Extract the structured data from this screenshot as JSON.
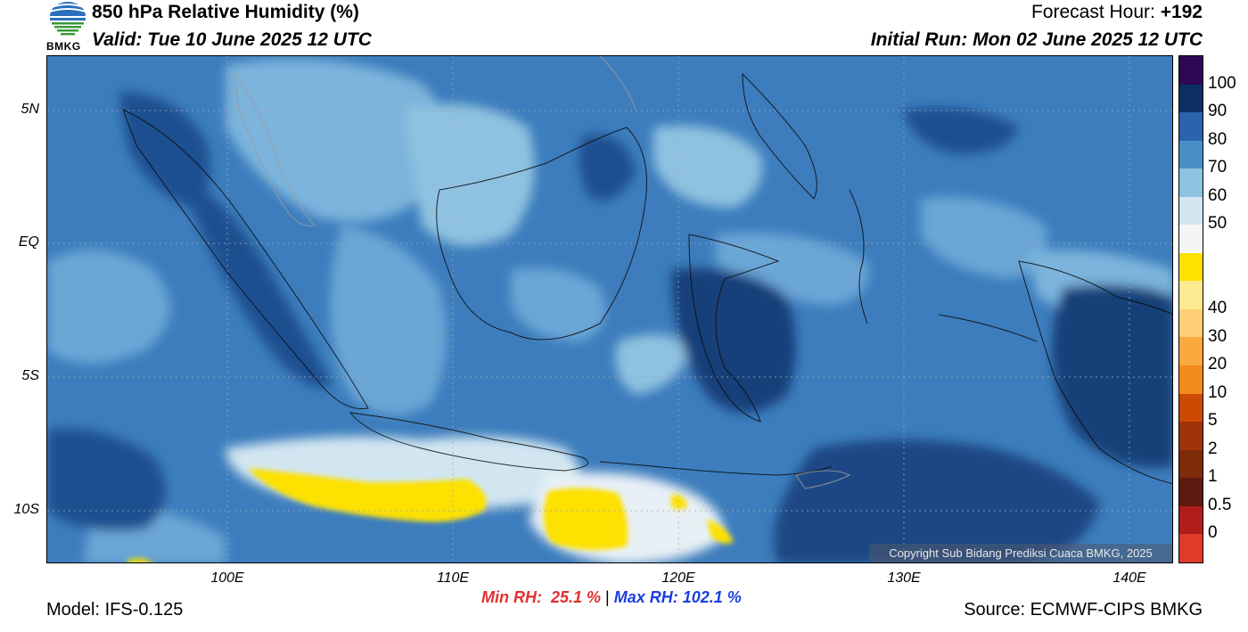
{
  "header": {
    "title": "850 hPa Relative Humidity (%)",
    "valid": "Valid: Tue 10 June 2025 12 UTC",
    "forecast_label": "Forecast Hour: ",
    "forecast_value": "+192",
    "initial_run": "Initial Run: Mon 02 June 2025 12 UTC"
  },
  "logo": {
    "text": "BMKG",
    "icon": "bmkg-logo"
  },
  "map": {
    "lat_labels": [
      "5N",
      "EQ",
      "5S",
      "10S"
    ],
    "lon_labels": [
      "100E",
      "110E",
      "120E",
      "130E",
      "140E"
    ],
    "copyright": "Copyright Sub Bidang Prediksi Cuaca BMKG, 2025"
  },
  "colorbar": {
    "labels": [
      "100",
      "90",
      "80",
      "70",
      "60",
      "50",
      "40",
      "30",
      "20",
      "10",
      "5",
      "2",
      "1",
      "0.5",
      "0"
    ],
    "colors": [
      "#2e0854",
      "#0c2f63",
      "#2c63ad",
      "#4a8ec8",
      "#8fc2e0",
      "#d2e6f1",
      "#f5f5f5",
      "#fde100",
      "#fde98f",
      "#fecf75",
      "#fba93e",
      "#f28a1a",
      "#cc4a04",
      "#a0330a",
      "#7e2b0a",
      "#5d1a0e",
      "#b01d1d",
      "#e03a2a"
    ]
  },
  "stats": {
    "min": "Min RH:  25.1 %",
    "sep": " | ",
    "max": "Max RH: 102.1 %",
    "min_color": "#e03030",
    "max_color": "#1a3fe0"
  },
  "footer": {
    "model": "Model: IFS-0.125",
    "source": "Source: ECMWF-CIPS BMKG"
  }
}
